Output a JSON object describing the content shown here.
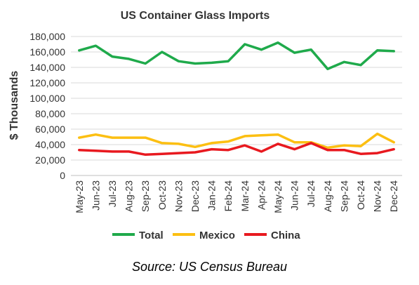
{
  "chart_data": {
    "type": "line",
    "title": "US Container Glass Imports",
    "ylabel": "$ Thousands",
    "xlabel": "",
    "ylim": [
      0,
      180000
    ],
    "yticks": [
      0,
      20000,
      40000,
      60000,
      80000,
      100000,
      120000,
      140000,
      160000,
      180000
    ],
    "ytick_labels": [
      "0",
      "20,000",
      "40,000",
      "60,000",
      "80,000",
      "100,000",
      "120,000",
      "140,000",
      "160,000",
      "180,000"
    ],
    "grid": "horizontal",
    "legend_position": "bottom",
    "categories": [
      "May-23",
      "Jun-23",
      "Jul-23",
      "Aug-23",
      "Sep-23",
      "Oct-23",
      "Nov-23",
      "Dec-23",
      "Jan-24",
      "Feb-24",
      "Mar-24",
      "Apr-24",
      "May-24",
      "Jun-24",
      "Jul-24",
      "Aug-24",
      "Sep-24",
      "Oct-24",
      "Nov-24",
      "Dec-24"
    ],
    "series": [
      {
        "name": "Total",
        "color": "#1faa4b",
        "values": [
          162000,
          168000,
          154000,
          151000,
          145000,
          160000,
          148000,
          145000,
          146000,
          148000,
          170000,
          163000,
          172000,
          159000,
          163000,
          138000,
          147000,
          143000,
          162000,
          161000
        ]
      },
      {
        "name": "Mexico",
        "color": "#fcbf12",
        "values": [
          49000,
          53000,
          49000,
          49000,
          49000,
          42000,
          41000,
          37000,
          42000,
          44000,
          51000,
          52000,
          53000,
          43000,
          43000,
          36000,
          39000,
          38000,
          54000,
          43000
        ]
      },
      {
        "name": "China",
        "color": "#e8191f",
        "values": [
          33000,
          32000,
          31000,
          31000,
          27000,
          28000,
          29000,
          30000,
          34000,
          33000,
          39000,
          31000,
          41000,
          34000,
          42000,
          33000,
          33000,
          28000,
          29000,
          34000
        ]
      }
    ]
  },
  "source_text": "Source: US Census Bureau"
}
